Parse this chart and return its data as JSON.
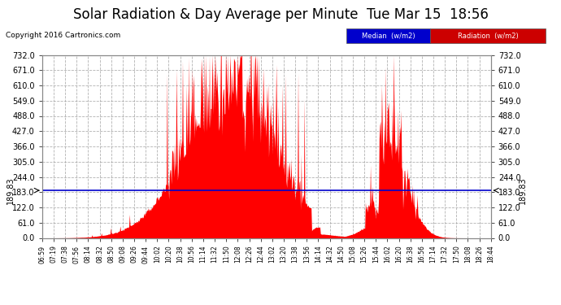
{
  "title": "Solar Radiation & Day Average per Minute  Tue Mar 15  18:56",
  "copyright": "Copyright 2016 Cartronics.com",
  "median_value": 189.83,
  "yticks": [
    0.0,
    61.0,
    122.0,
    183.0,
    244.0,
    305.0,
    366.0,
    427.0,
    488.0,
    549.0,
    610.0,
    671.0,
    732.0
  ],
  "ymax": 732.0,
  "ymin": 0.0,
  "bar_color": "#FF0000",
  "median_color": "#0000CC",
  "bg_color": "#FFFFFF",
  "grid_color": "#AAAAAA",
  "title_fontsize": 12,
  "tick_label_color": "#000000",
  "x_labels": [
    "06:59",
    "07:19",
    "07:38",
    "07:56",
    "08:14",
    "08:32",
    "08:50",
    "09:08",
    "09:26",
    "09:44",
    "10:02",
    "10:20",
    "10:38",
    "10:56",
    "11:14",
    "11:32",
    "11:50",
    "12:08",
    "12:26",
    "12:44",
    "13:02",
    "13:20",
    "13:38",
    "13:56",
    "14:14",
    "14:32",
    "14:50",
    "15:08",
    "15:26",
    "15:44",
    "16:02",
    "16:20",
    "16:38",
    "16:56",
    "17:14",
    "17:32",
    "17:50",
    "18:08",
    "18:26",
    "18:44"
  ]
}
